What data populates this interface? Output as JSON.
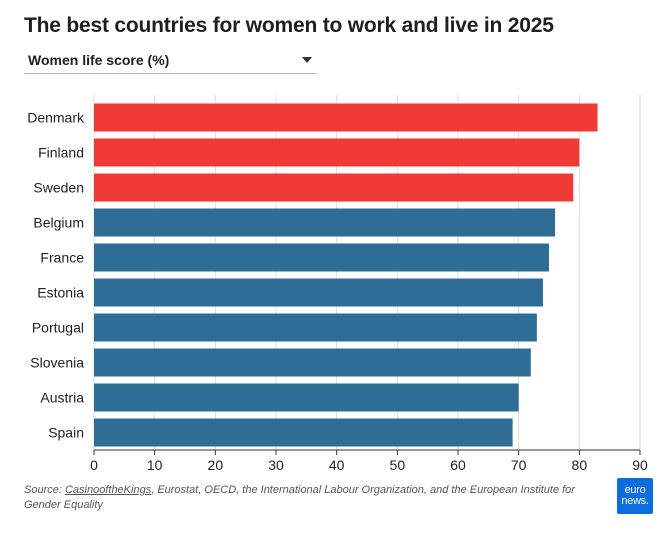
{
  "title": "The best countries for women to work and live in 2025",
  "dropdown": {
    "selected": "Women life score (%)"
  },
  "source": {
    "prefix": "Source: ",
    "link": "CasinooftheKings",
    "rest": ", Eurostat, OECD, the International Labour Organization, and the European Institute for Gender Equality"
  },
  "logo": {
    "line1": "euro",
    "line2": "news."
  },
  "colors": {
    "highlight": "#f03a35",
    "default": "#2d6d96",
    "grid": "#dddddd",
    "axis": "#333333"
  },
  "chart_data": {
    "type": "bar",
    "orientation": "horizontal",
    "categories": [
      "Denmark",
      "Finland",
      "Sweden",
      "Belgium",
      "France",
      "Estonia",
      "Portugal",
      "Slovenia",
      "Austria",
      "Spain"
    ],
    "values": [
      83,
      80,
      79,
      76,
      75,
      74,
      73,
      72,
      70,
      69
    ],
    "highlighted": [
      true,
      true,
      true,
      false,
      false,
      false,
      false,
      false,
      false,
      false
    ],
    "xlim": [
      0,
      90
    ],
    "xticks": [
      0,
      10,
      20,
      30,
      40,
      50,
      60,
      70,
      80,
      90
    ],
    "grid": true,
    "title": "",
    "xlabel": "",
    "ylabel": ""
  }
}
